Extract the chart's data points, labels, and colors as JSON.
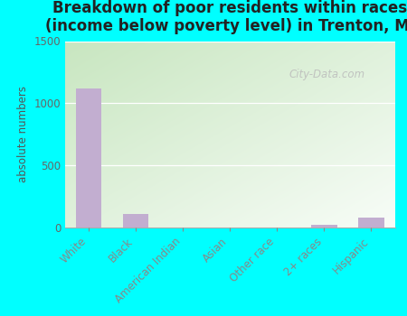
{
  "title": "Breakdown of poor residents within races\n(income below poverty level) in Trenton, MI",
  "categories": [
    "White",
    "Black",
    "American Indian",
    "Asian",
    "Other race",
    "2+ races",
    "Hispanic"
  ],
  "values": [
    1120,
    110,
    0,
    0,
    0,
    20,
    80
  ],
  "bar_color": "#c2aed0",
  "ylabel": "absolute numbers",
  "ylim": [
    0,
    1500
  ],
  "yticks": [
    0,
    500,
    1000,
    1500
  ],
  "bg_grad_topleft": "#c8e6c0",
  "bg_grad_bottomright": "#f8fdf8",
  "outer_bg": "#00ffff",
  "title_fontsize": 12,
  "label_fontsize": 8.5,
  "tick_fontsize": 8.5,
  "watermark": "City-Data.com"
}
